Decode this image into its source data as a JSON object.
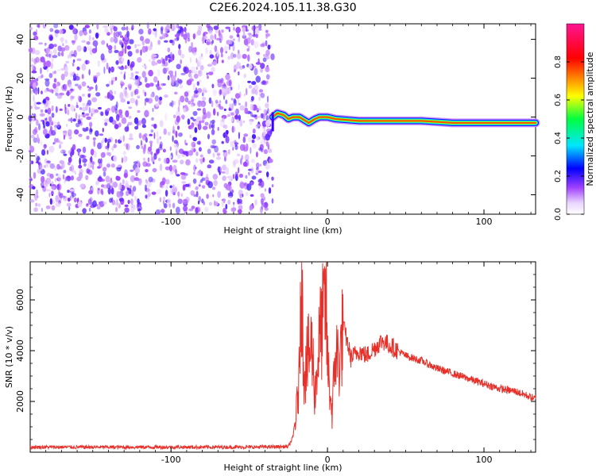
{
  "title": "C2E6.2024.105.11.38.G30",
  "colors": {
    "snr_line": "#e8302a",
    "axis": "#000000"
  },
  "chart_data": [
    {
      "type": "heatmap",
      "xlabel": "Height of straight line (km)",
      "ylabel": "Frequency (Hz)",
      "xlim": [
        -190,
        133
      ],
      "ylim": [
        -50,
        48
      ],
      "x_ticks": [
        -100,
        0,
        100
      ],
      "x_tick_labels": [
        "-100",
        "0",
        "100"
      ],
      "y_ticks": [
        -40,
        -20,
        0,
        20,
        40
      ],
      "y_tick_labels": [
        "-40",
        "-20",
        "0",
        "20",
        "40"
      ],
      "colorbar": {
        "label": "Normalized spectral amplitude",
        "range": [
          0,
          1
        ],
        "ticks": [
          0,
          0.2,
          0.4,
          0.6,
          0.8
        ],
        "tick_labels": [
          "0.0",
          "0.2",
          "0.4",
          "0.6",
          "0.8"
        ],
        "colormap": "rainbow (white–purple–blue–cyan–green–yellow–red–magenta)"
      },
      "noise_region_x": [
        -190,
        -35
      ],
      "noise_amplitude_range": [
        0.05,
        0.2
      ],
      "signal_trace": [
        {
          "x": -35,
          "y": 0
        },
        {
          "x": -32,
          "y": 2
        },
        {
          "x": -28,
          "y": 1
        },
        {
          "x": -25,
          "y": -1
        },
        {
          "x": -22,
          "y": 0
        },
        {
          "x": -18,
          "y": 0
        },
        {
          "x": -14,
          "y": -2
        },
        {
          "x": -12,
          "y": -3
        },
        {
          "x": -8,
          "y": -1
        },
        {
          "x": -5,
          "y": 0
        },
        {
          "x": 0,
          "y": 0
        },
        {
          "x": 5,
          "y": -1
        },
        {
          "x": 20,
          "y": -2
        },
        {
          "x": 60,
          "y": -2
        },
        {
          "x": 80,
          "y": -3
        },
        {
          "x": 133,
          "y": -3
        }
      ],
      "signal_peak_amplitude": 0.8
    },
    {
      "type": "line",
      "xlabel": "Height of straight line (km)",
      "ylabel": "SNR (10 * v/v)",
      "xlim": [
        -190,
        133
      ],
      "ylim": [
        0,
        7500
      ],
      "x_ticks": [
        -100,
        0,
        100
      ],
      "x_tick_labels": [
        "-100",
        "0",
        "100"
      ],
      "y_ticks": [
        2000,
        4000,
        6000
      ],
      "y_tick_labels": [
        "2000",
        "4000",
        "6000"
      ],
      "series": [
        {
          "points": [
            [
              -190,
              200
            ],
            [
              -150,
              200
            ],
            [
              -100,
              200
            ],
            [
              -50,
              200
            ],
            [
              -25,
              220
            ],
            [
              -22,
              600
            ],
            [
              -20,
              1500
            ],
            [
              -18,
              3000
            ],
            [
              -17,
              7500
            ],
            [
              -15,
              3200
            ],
            [
              -12,
              3800
            ],
            [
              -10,
              4200
            ],
            [
              -8,
              2300
            ],
            [
              -5,
              4500
            ],
            [
              -3,
              5200
            ],
            [
              -1,
              6000
            ],
            [
              0,
              3500
            ],
            [
              3,
              1500
            ],
            [
              5,
              3900
            ],
            [
              8,
              3600
            ],
            [
              10,
              5000
            ],
            [
              12,
              4500
            ],
            [
              15,
              3700
            ],
            [
              20,
              4000
            ],
            [
              25,
              3800
            ],
            [
              30,
              4100
            ],
            [
              35,
              4400
            ],
            [
              40,
              4200
            ],
            [
              50,
              3800
            ],
            [
              60,
              3600
            ],
            [
              70,
              3300
            ],
            [
              80,
              3100
            ],
            [
              90,
              2900
            ],
            [
              95,
              2800
            ],
            [
              100,
              2700
            ],
            [
              110,
              2500
            ],
            [
              120,
              2400
            ],
            [
              133,
              2100
            ]
          ]
        }
      ]
    }
  ]
}
